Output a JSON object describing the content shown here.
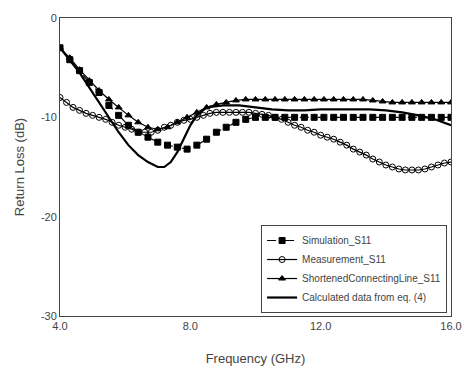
{
  "chart_data": {
    "type": "line",
    "xlabel": "Frequency (GHz)",
    "ylabel": "Return Loss (dB)",
    "xlim": [
      4.0,
      16.0
    ],
    "ylim": [
      -30,
      0
    ],
    "xticks": [
      {
        "value": 4.0,
        "label": "4.0"
      },
      {
        "value": 8.0,
        "label": "8.0"
      },
      {
        "value": 12.0,
        "label": "12.0"
      },
      {
        "value": 16.0,
        "label": "16.0"
      }
    ],
    "yticks": [
      0,
      -10,
      -20,
      -30
    ],
    "grid": false,
    "legend": "lower right",
    "series": [
      {
        "name": "Simulation_S11",
        "color": "#000000",
        "marker": "square",
        "line_style": "dashed",
        "x": [
          4.0,
          4.3,
          4.6,
          4.9,
          5.2,
          5.5,
          5.8,
          6.1,
          6.4,
          6.7,
          7.0,
          7.3,
          7.6,
          7.9,
          8.2,
          8.5,
          8.8,
          9.1,
          9.4,
          9.7,
          10.0,
          10.3,
          10.6,
          10.9,
          11.2,
          11.5,
          11.8,
          12.1,
          12.4,
          12.7,
          13.0,
          13.3,
          13.6,
          13.9,
          14.2,
          14.5,
          14.8,
          15.1,
          15.4,
          15.7,
          16.0
        ],
        "values": [
          -3.0,
          -4.2,
          -5.3,
          -6.5,
          -7.5,
          -8.8,
          -9.8,
          -10.8,
          -11.5,
          -12.0,
          -12.5,
          -12.8,
          -13.0,
          -13.2,
          -12.8,
          -12.2,
          -11.5,
          -11.0,
          -10.5,
          -10.2,
          -10.0,
          -10.0,
          -10.0,
          -10.0,
          -10.0,
          -10.0,
          -10.0,
          -10.0,
          -10.0,
          -10.0,
          -10.0,
          -10.0,
          -10.0,
          -10.0,
          -10.0,
          -10.0,
          -10.0,
          -10.0,
          -10.0,
          -10.0,
          -10.0
        ]
      },
      {
        "name": "Measurement_S11",
        "color": "#000000",
        "marker": "open circle",
        "line_style": "solid",
        "x": [
          4.0,
          4.2,
          4.4,
          4.6,
          4.8,
          5.0,
          5.2,
          5.4,
          5.6,
          5.8,
          6.0,
          6.2,
          6.4,
          6.6,
          6.8,
          7.0,
          7.2,
          7.4,
          7.6,
          7.8,
          8.0,
          8.2,
          8.4,
          8.6,
          8.8,
          9.0,
          9.2,
          9.4,
          9.6,
          9.8,
          10.0,
          10.2,
          10.4,
          10.6,
          10.8,
          11.0,
          11.2,
          11.4,
          11.6,
          11.8,
          12.0,
          12.2,
          12.4,
          12.6,
          12.8,
          13.0,
          13.2,
          13.4,
          13.6,
          13.8,
          14.0,
          14.2,
          14.4,
          14.6,
          14.8,
          15.0,
          15.2,
          15.4,
          15.6,
          15.8,
          16.0
        ],
        "values": [
          -8.0,
          -8.5,
          -9.0,
          -9.3,
          -9.6,
          -9.8,
          -10.0,
          -10.2,
          -10.5,
          -10.8,
          -11.0,
          -11.2,
          -11.5,
          -11.5,
          -11.5,
          -11.3,
          -11.0,
          -10.8,
          -10.5,
          -10.3,
          -10.2,
          -10.0,
          -9.8,
          -9.6,
          -9.5,
          -9.5,
          -9.5,
          -9.5,
          -9.5,
          -9.5,
          -9.6,
          -9.7,
          -9.8,
          -10.0,
          -10.2,
          -10.5,
          -10.8,
          -11.0,
          -11.3,
          -11.5,
          -11.8,
          -12.0,
          -12.2,
          -12.5,
          -12.8,
          -13.2,
          -13.5,
          -13.8,
          -14.2,
          -14.5,
          -14.8,
          -15.0,
          -15.2,
          -15.3,
          -15.3,
          -15.3,
          -15.2,
          -15.0,
          -14.8,
          -14.6,
          -14.5
        ]
      },
      {
        "name": "ShortenedConnectingLine_S11",
        "color": "#000000",
        "marker": "triangle",
        "line_style": "solid",
        "x": [
          4.0,
          4.3,
          4.6,
          4.9,
          5.2,
          5.5,
          5.8,
          6.1,
          6.4,
          6.7,
          7.0,
          7.3,
          7.6,
          7.9,
          8.2,
          8.5,
          8.8,
          9.1,
          9.4,
          9.7,
          10.0,
          10.3,
          10.6,
          10.9,
          11.2,
          11.5,
          11.8,
          12.1,
          12.4,
          12.7,
          13.0,
          13.3,
          13.6,
          13.9,
          14.2,
          14.5,
          14.8,
          15.1,
          15.4,
          15.7,
          16.0
        ],
        "values": [
          -3.0,
          -4.0,
          -5.2,
          -6.3,
          -7.3,
          -8.2,
          -9.0,
          -9.8,
          -10.5,
          -11.0,
          -11.2,
          -11.0,
          -10.5,
          -10.0,
          -9.5,
          -9.0,
          -8.7,
          -8.5,
          -8.3,
          -8.2,
          -8.2,
          -8.2,
          -8.2,
          -8.2,
          -8.2,
          -8.2,
          -8.2,
          -8.2,
          -8.2,
          -8.2,
          -8.2,
          -8.2,
          -8.3,
          -8.4,
          -8.5,
          -8.5,
          -8.5,
          -8.5,
          -8.5,
          -8.5,
          -8.5
        ]
      },
      {
        "name": "Calculated data from eq. (4)",
        "color": "#000000",
        "line_style": "solid",
        "x": [
          4.0,
          4.3,
          4.6,
          4.9,
          5.2,
          5.5,
          5.8,
          6.1,
          6.4,
          6.7,
          7.0,
          7.2,
          7.4,
          7.6,
          7.8,
          8.0,
          8.2,
          8.5,
          9.0,
          9.5,
          10.0,
          10.5,
          11.0,
          11.5,
          12.0,
          12.5,
          13.0,
          13.5,
          14.0,
          14.5,
          15.0,
          15.5,
          16.0
        ],
        "values": [
          -3.0,
          -4.2,
          -5.5,
          -7.0,
          -8.5,
          -10.0,
          -11.5,
          -12.8,
          -13.8,
          -14.5,
          -15.0,
          -15.0,
          -14.5,
          -13.5,
          -12.2,
          -10.8,
          -9.8,
          -9.0,
          -8.8,
          -8.8,
          -9.0,
          -9.2,
          -9.3,
          -9.3,
          -9.2,
          -9.2,
          -9.2,
          -9.2,
          -9.3,
          -9.5,
          -9.8,
          -10.2,
          -10.8
        ]
      }
    ]
  }
}
